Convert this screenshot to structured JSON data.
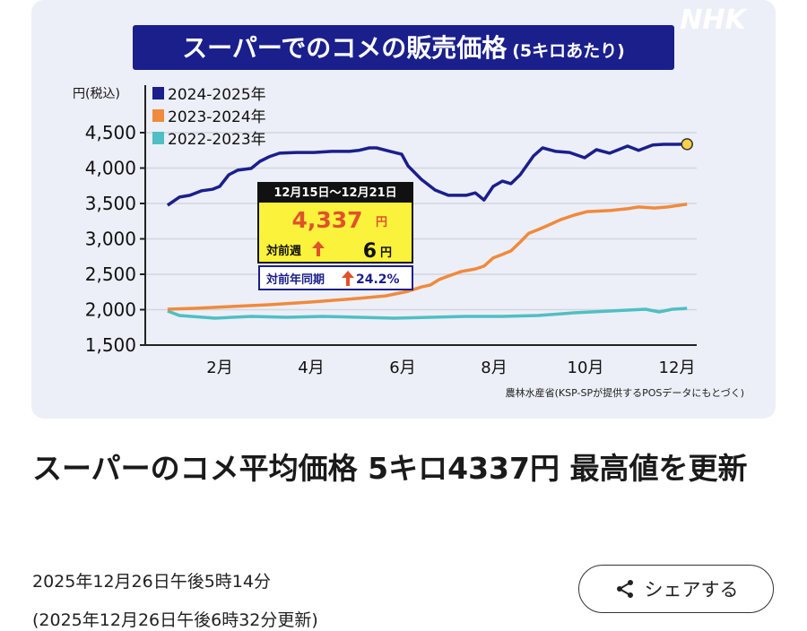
{
  "watermark": "NHK",
  "chart_data": {
    "type": "line",
    "title": "スーパーでのコメの販売価格",
    "subtitle": "(5キロあたり)",
    "ylabel": "円(税込)",
    "xlabel": "",
    "ylim": [
      1500,
      4500
    ],
    "yticks": [
      1500,
      2000,
      2500,
      3000,
      3500,
      4000,
      4500
    ],
    "ytick_labels": [
      "1,500",
      "2,000",
      "2,500",
      "3,000",
      "3,500",
      "4,000",
      "4,500"
    ],
    "xticks": [
      2,
      4,
      6,
      8,
      10,
      12
    ],
    "xtick_labels": [
      "2月",
      "4月",
      "6月",
      "8月",
      "10月",
      "12月"
    ],
    "grid": true,
    "legend_position": "top-left",
    "source": "農林水産省(KSP-SPが提供するPOSデータにもとづく)",
    "series": [
      {
        "name": "2024-2025年",
        "color": "#1a1f8c",
        "x": [
          0.86,
          1.12,
          1.35,
          1.61,
          1.84,
          2.0,
          2.2,
          2.39,
          2.69,
          2.88,
          3.08,
          3.31,
          3.67,
          4.06,
          4.45,
          4.84,
          5.04,
          5.27,
          5.43,
          5.73,
          5.98,
          6.12,
          6.41,
          6.71,
          7.0,
          7.39,
          7.59,
          7.78,
          7.98,
          8.18,
          8.37,
          8.57,
          8.86,
          9.06,
          9.35,
          9.65,
          9.98,
          10.24,
          10.53,
          10.92,
          11.16,
          11.47,
          11.71,
          12.0,
          12.22
        ],
        "y": [
          3475,
          3590,
          3615,
          3680,
          3700,
          3740,
          3905,
          3970,
          3995,
          4095,
          4160,
          4210,
          4220,
          4220,
          4235,
          4235,
          4250,
          4285,
          4285,
          4235,
          4195,
          4030,
          3840,
          3690,
          3615,
          3615,
          3650,
          3550,
          3740,
          3815,
          3780,
          3905,
          4170,
          4285,
          4235,
          4220,
          4145,
          4260,
          4210,
          4310,
          4250,
          4325,
          4335,
          4335,
          4337
        ]
      },
      {
        "name": "2023-2024年",
        "color": "#f08a3c",
        "x": [
          0.86,
          1.51,
          2.29,
          3.08,
          4.06,
          5.04,
          5.63,
          6.12,
          6.41,
          6.61,
          6.8,
          7.0,
          7.29,
          7.59,
          7.78,
          7.98,
          8.18,
          8.37,
          8.57,
          8.76,
          8.96,
          9.16,
          9.45,
          9.75,
          10.04,
          10.53,
          10.92,
          11.16,
          11.51,
          11.8,
          12.22
        ],
        "y": [
          2006,
          2020,
          2045,
          2070,
          2110,
          2160,
          2195,
          2260,
          2320,
          2350,
          2425,
          2475,
          2540,
          2575,
          2615,
          2730,
          2780,
          2830,
          2955,
          3080,
          3130,
          3185,
          3270,
          3335,
          3385,
          3400,
          3425,
          3450,
          3435,
          3450,
          3490
        ]
      },
      {
        "name": "2022-2023年",
        "color": "#4fbfc4",
        "x": [
          0.86,
          1.12,
          1.9,
          2.69,
          3.47,
          4.25,
          5.04,
          5.82,
          6.61,
          7.39,
          8.18,
          8.96,
          9.75,
          10.53,
          11.31,
          11.61,
          11.9,
          12.22
        ],
        "y": [
          1981,
          1918,
          1880,
          1905,
          1892,
          1905,
          1892,
          1880,
          1892,
          1905,
          1905,
          1918,
          1956,
          1981,
          2006,
          1968,
          2006,
          2019
        ]
      }
    ],
    "highlight_color": "#f5d04a",
    "annotation": {
      "period": "12月15日〜12月21日",
      "price": "4,337",
      "price_unit": "円",
      "wow_label": "対前週",
      "wow_value": "6",
      "wow_unit": "円",
      "yoy_label": "対前年同期",
      "yoy_value": "24.2%"
    }
  },
  "article": {
    "headline": "スーパーのコメ平均価格 5キロ4337円 最高値を更新",
    "published": "2025年12月26日午後5時14分",
    "updated": "(2025年12月26日午後6時32分更新)",
    "share_label": "シェアする",
    "share_icon": "share-icon"
  }
}
